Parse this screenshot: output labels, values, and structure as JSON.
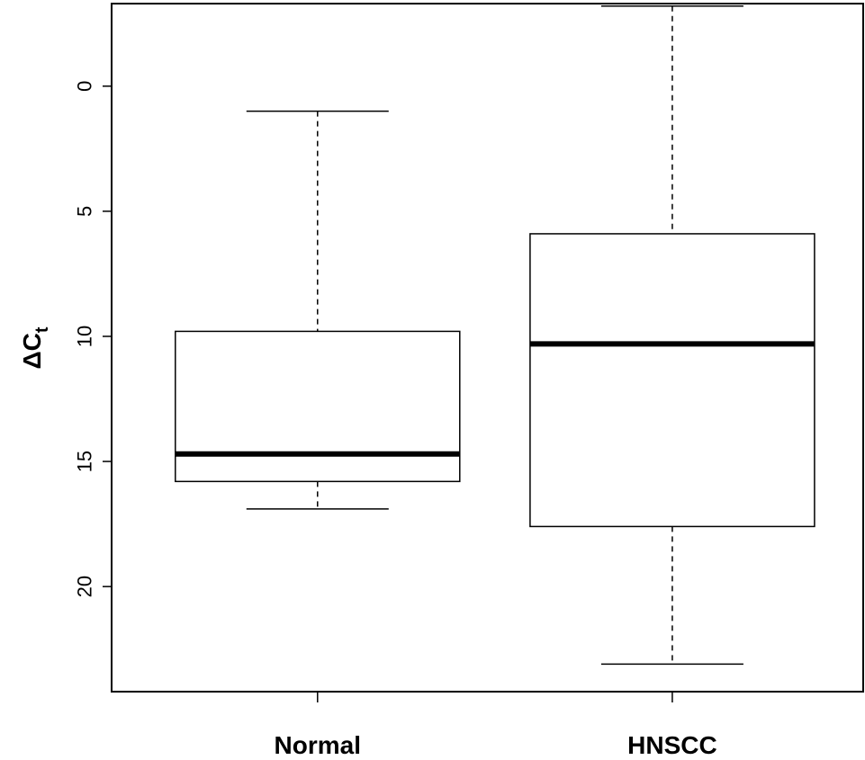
{
  "chart_data": {
    "type": "boxplot",
    "title": "",
    "xlabel": "",
    "ylabel": "ΔC",
    "ylabel_subscript": "t",
    "y_reversed": true,
    "ylim": [
      -3.3,
      24.2
    ],
    "yticks": [
      0,
      5,
      10,
      15,
      20
    ],
    "categories": [
      "Normal",
      "HNSCC"
    ],
    "boxes": [
      {
        "name": "Normal",
        "whisker_low": 1.0,
        "q1": 9.8,
        "median": 14.7,
        "q3": 15.8,
        "whisker_high": 16.9
      },
      {
        "name": "HNSCC",
        "whisker_low": -3.2,
        "q1": 5.9,
        "median": 10.3,
        "q3": 17.6,
        "whisker_high": 23.1
      }
    ],
    "grid": false,
    "legend": "none"
  }
}
